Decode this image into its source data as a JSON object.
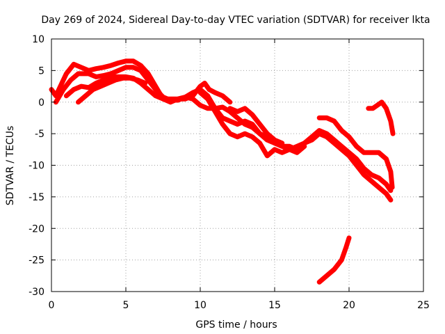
{
  "chart_data": {
    "type": "line",
    "title": "Day 269 of 2024, Sidereal Day-to-day VTEC variation (SDTVAR) for receiver lkta",
    "xlabel": "GPS time / hours",
    "ylabel": "SDTVAR / TECUs",
    "xlim": [
      0,
      25
    ],
    "ylim": [
      -30,
      10
    ],
    "xticks": [
      0,
      5,
      10,
      15,
      20,
      25
    ],
    "yticks": [
      -30,
      -25,
      -20,
      -15,
      -10,
      -5,
      0,
      5,
      10
    ],
    "grid": true,
    "color": "#ff0000",
    "series": [
      {
        "name": "trace-1",
        "points": [
          [
            0.0,
            2.0
          ],
          [
            0.3,
            1.0
          ],
          [
            0.6,
            2.5
          ],
          [
            1.0,
            4.5
          ],
          [
            1.5,
            6.0
          ],
          [
            2.0,
            5.5
          ],
          [
            2.5,
            5.0
          ],
          [
            3.0,
            5.3
          ],
          [
            3.5,
            5.5
          ],
          [
            4.0,
            5.8
          ],
          [
            4.5,
            6.2
          ],
          [
            5.0,
            6.5
          ],
          [
            5.5,
            6.5
          ],
          [
            6.0,
            5.8
          ],
          [
            6.5,
            4.5
          ],
          [
            7.0,
            2.5
          ],
          [
            7.5,
            0.5
          ],
          [
            8.0,
            0.0
          ],
          [
            8.5,
            0.5
          ],
          [
            9.0,
            0.5
          ],
          [
            9.5,
            1.0
          ],
          [
            10.0,
            2.5
          ],
          [
            10.3,
            3.0
          ],
          [
            10.6,
            2.0
          ],
          [
            11.0,
            1.5
          ],
          [
            11.5,
            1.0
          ],
          [
            12.0,
            0.0
          ]
        ]
      },
      {
        "name": "trace-2",
        "points": [
          [
            0.3,
            0.0
          ],
          [
            0.8,
            2.0
          ],
          [
            1.3,
            3.5
          ],
          [
            1.8,
            4.5
          ],
          [
            2.5,
            4.5
          ],
          [
            3.0,
            4.0
          ],
          [
            3.5,
            4.2
          ],
          [
            4.0,
            4.5
          ],
          [
            4.5,
            5.0
          ],
          [
            5.0,
            5.5
          ],
          [
            5.5,
            5.5
          ],
          [
            6.0,
            5.0
          ],
          [
            6.5,
            3.5
          ],
          [
            7.0,
            2.0
          ],
          [
            7.5,
            0.8
          ],
          [
            8.0,
            0.3
          ],
          [
            8.5,
            0.3
          ],
          [
            9.0,
            0.8
          ],
          [
            9.5,
            0.5
          ],
          [
            10.0,
            -0.5
          ],
          [
            10.5,
            -1.0
          ],
          [
            11.0,
            -1.0
          ],
          [
            11.5,
            -0.8
          ],
          [
            12.0,
            -1.5
          ],
          [
            12.5,
            -2.5
          ],
          [
            13.0,
            -3.5
          ],
          [
            13.5,
            -4.0
          ],
          [
            14.0,
            -5.0
          ],
          [
            14.5,
            -6.0
          ],
          [
            15.0,
            -6.5
          ],
          [
            15.5,
            -7.0
          ],
          [
            16.0,
            -7.0
          ],
          [
            16.5,
            -7.5
          ],
          [
            17.0,
            -6.5
          ],
          [
            17.5,
            -5.5
          ],
          [
            18.0,
            -4.5
          ],
          [
            18.5,
            -5.0
          ],
          [
            19.0,
            -6.0
          ],
          [
            19.5,
            -7.0
          ],
          [
            20.0,
            -8.0
          ],
          [
            20.5,
            -9.0
          ],
          [
            21.0,
            -10.5
          ],
          [
            21.5,
            -11.5
          ],
          [
            22.0,
            -12.0
          ],
          [
            22.5,
            -13.0
          ],
          [
            22.8,
            -14.0
          ]
        ]
      },
      {
        "name": "trace-3",
        "points": [
          [
            1.0,
            1.0
          ],
          [
            1.5,
            2.0
          ],
          [
            2.0,
            2.5
          ],
          [
            2.5,
            2.3
          ],
          [
            3.0,
            3.0
          ],
          [
            3.5,
            3.5
          ],
          [
            4.0,
            4.0
          ],
          [
            4.5,
            4.0
          ],
          [
            5.0,
            4.0
          ],
          [
            5.5,
            3.8
          ],
          [
            6.0,
            3.0
          ],
          [
            6.5,
            2.0
          ],
          [
            7.0,
            1.0
          ],
          [
            7.5,
            0.5
          ],
          [
            8.0,
            0.5
          ],
          [
            8.5,
            0.5
          ],
          [
            9.0,
            0.8
          ],
          [
            9.5,
            1.5
          ],
          [
            10.0,
            2.0
          ],
          [
            10.5,
            1.0
          ],
          [
            11.0,
            -1.0
          ],
          [
            11.5,
            -2.5
          ],
          [
            12.0,
            -3.0
          ],
          [
            12.5,
            -3.5
          ],
          [
            13.0,
            -3.0
          ],
          [
            13.5,
            -3.5
          ],
          [
            14.0,
            -5.0
          ],
          [
            14.5,
            -5.5
          ],
          [
            15.0,
            -6.5
          ],
          [
            15.5,
            -7.0
          ],
          [
            16.0,
            -7.5
          ],
          [
            16.5,
            -7.0
          ],
          [
            17.0,
            -6.5
          ],
          [
            17.5,
            -6.0
          ],
          [
            18.0,
            -5.0
          ],
          [
            18.5,
            -5.5
          ],
          [
            19.0,
            -6.5
          ],
          [
            19.5,
            -7.5
          ],
          [
            20.0,
            -8.5
          ],
          [
            20.5,
            -10.0
          ],
          [
            21.0,
            -11.5
          ],
          [
            21.5,
            -12.5
          ],
          [
            22.0,
            -13.5
          ],
          [
            22.5,
            -14.5
          ],
          [
            22.8,
            -15.5
          ]
        ]
      },
      {
        "name": "trace-4",
        "points": [
          [
            1.8,
            0.0
          ],
          [
            2.3,
            1.0
          ],
          [
            2.8,
            2.0
          ],
          [
            3.3,
            2.5
          ],
          [
            3.8,
            3.0
          ],
          [
            4.3,
            3.5
          ],
          [
            4.8,
            3.8
          ],
          [
            5.3,
            3.8
          ],
          [
            5.8,
            3.5
          ],
          [
            6.3,
            3.0
          ]
        ]
      },
      {
        "name": "trace-5",
        "points": [
          [
            10.0,
            1.5
          ],
          [
            10.5,
            0.5
          ],
          [
            11.0,
            -1.5
          ],
          [
            11.5,
            -3.5
          ],
          [
            12.0,
            -5.0
          ],
          [
            12.5,
            -5.5
          ],
          [
            13.0,
            -5.0
          ],
          [
            13.5,
            -5.5
          ],
          [
            14.0,
            -6.5
          ],
          [
            14.5,
            -8.5
          ],
          [
            15.0,
            -7.5
          ],
          [
            15.5,
            -8.0
          ],
          [
            16.0,
            -7.5
          ],
          [
            16.5,
            -8.0
          ],
          [
            17.0,
            -7.0
          ]
        ]
      },
      {
        "name": "trace-6",
        "points": [
          [
            12.0,
            -1.0
          ],
          [
            12.5,
            -1.5
          ],
          [
            13.0,
            -1.0
          ],
          [
            13.5,
            -2.0
          ],
          [
            14.0,
            -3.5
          ],
          [
            14.5,
            -5.0
          ],
          [
            15.0,
            -6.0
          ],
          [
            15.5,
            -6.5
          ]
        ]
      },
      {
        "name": "trace-7",
        "points": [
          [
            18.0,
            -2.5
          ],
          [
            18.5,
            -2.5
          ],
          [
            19.0,
            -3.0
          ],
          [
            19.5,
            -4.5
          ],
          [
            20.0,
            -5.5
          ],
          [
            20.5,
            -7.0
          ],
          [
            21.0,
            -8.0
          ],
          [
            21.5,
            -8.0
          ],
          [
            22.0,
            -8.0
          ],
          [
            22.5,
            -9.0
          ],
          [
            22.8,
            -11.0
          ],
          [
            22.9,
            -13.5
          ]
        ]
      },
      {
        "name": "trace-8",
        "points": [
          [
            21.3,
            -1.0
          ],
          [
            21.6,
            -1.0
          ],
          [
            21.9,
            -0.5
          ],
          [
            22.2,
            0.0
          ],
          [
            22.5,
            -1.0
          ],
          [
            22.8,
            -3.0
          ],
          [
            22.95,
            -5.0
          ]
        ]
      },
      {
        "name": "trace-9",
        "points": [
          [
            18.0,
            -28.5
          ],
          [
            18.5,
            -27.5
          ],
          [
            19.0,
            -26.5
          ],
          [
            19.5,
            -25.0
          ],
          [
            19.8,
            -23.0
          ],
          [
            20.0,
            -21.5
          ]
        ]
      }
    ]
  }
}
